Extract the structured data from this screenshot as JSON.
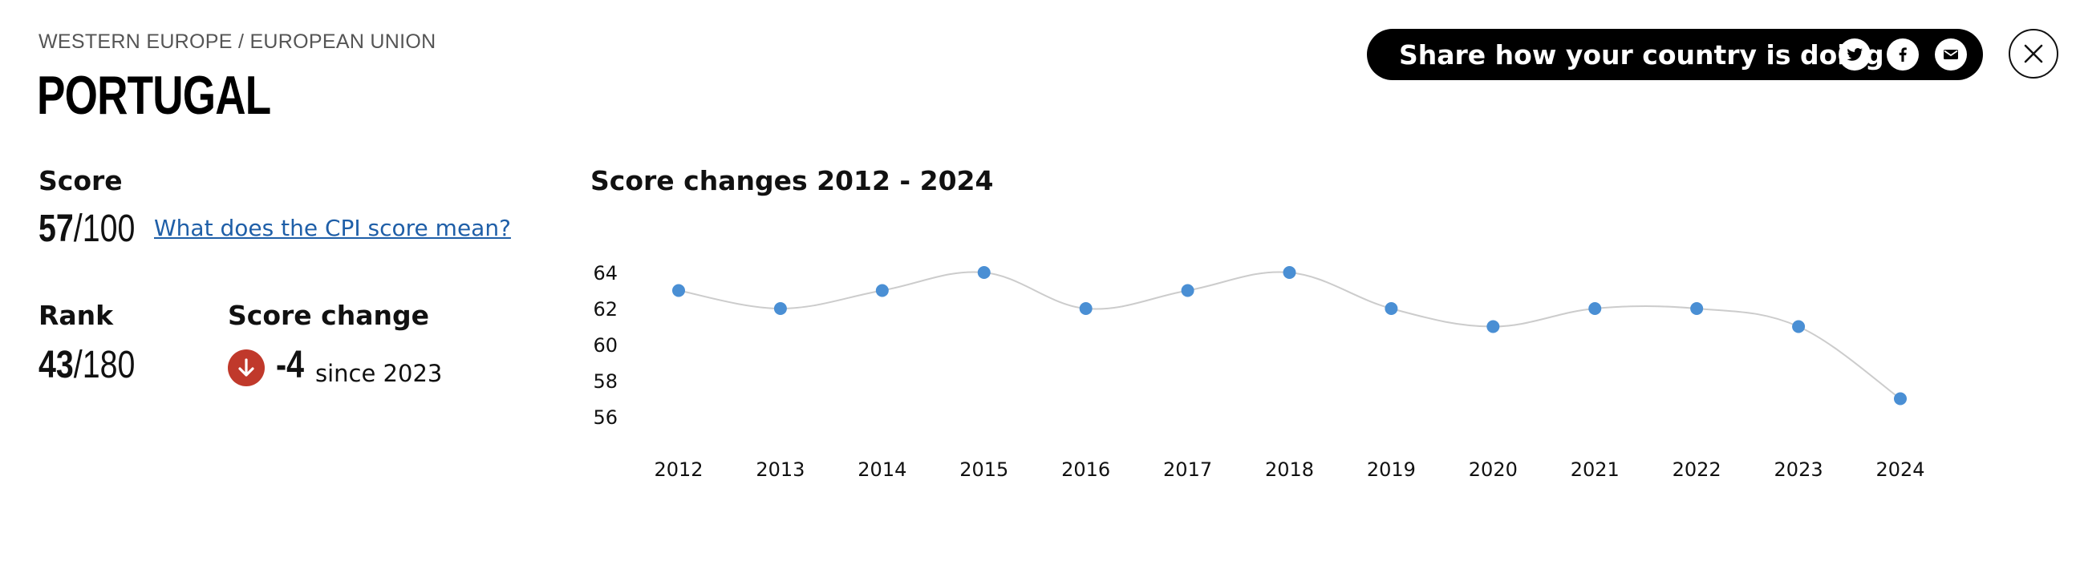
{
  "header": {
    "region": "WESTERN EUROPE / EUROPEAN UNION",
    "country": "PORTUGAL"
  },
  "share": {
    "label": "Share how your country is doing",
    "icons": [
      "twitter-icon",
      "facebook-icon",
      "email-icon"
    ]
  },
  "close": {
    "icon": "close-icon"
  },
  "score": {
    "label": "Score",
    "value": "57",
    "max": "/100",
    "link": "What does the CPI score mean?"
  },
  "rank": {
    "label": "Rank",
    "value": "43",
    "max": "/180"
  },
  "score_change": {
    "label": "Score change",
    "value": "-4",
    "since": "since 2023",
    "direction": "down",
    "color": "#c0392b"
  },
  "chart": {
    "title": "Score changes 2012 - 2024"
  },
  "chart_data": {
    "type": "line",
    "title": "Score changes 2012 - 2024",
    "xlabel": "",
    "ylabel": "",
    "x": [
      "2012",
      "2013",
      "2014",
      "2015",
      "2016",
      "2017",
      "2018",
      "2019",
      "2020",
      "2021",
      "2022",
      "2023",
      "2024"
    ],
    "series": [
      {
        "values": [
          63,
          62,
          63,
          64,
          62,
          63,
          64,
          62,
          61,
          62,
          62,
          61,
          57
        ]
      }
    ],
    "yticks": [
      64,
      62,
      60,
      58,
      56
    ],
    "ylim": [
      56,
      64
    ],
    "grid": false,
    "point_color": "#4a8fd4",
    "line_color": "#cccccc"
  }
}
